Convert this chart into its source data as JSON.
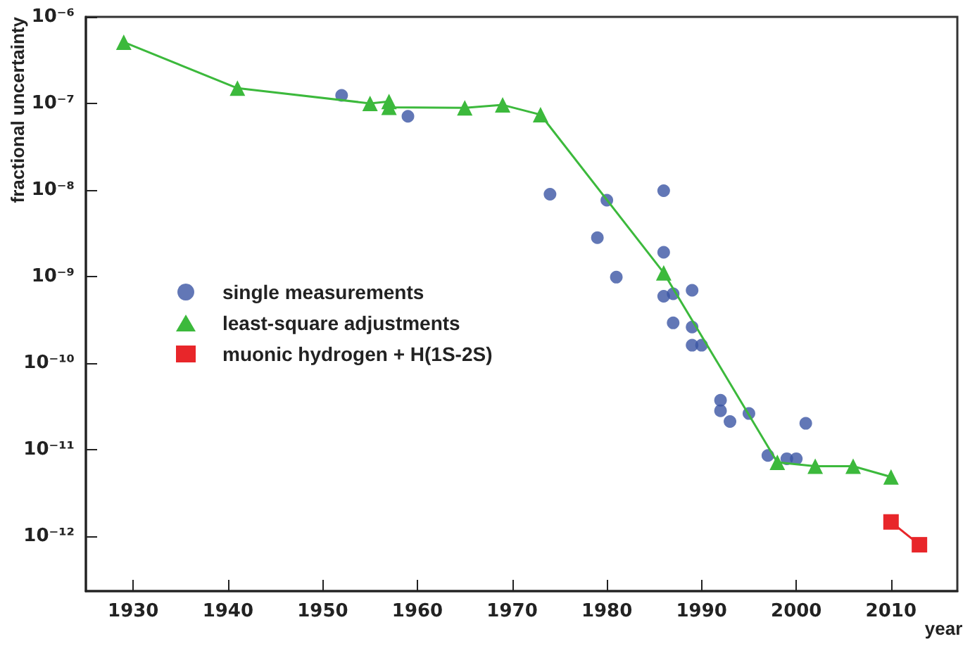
{
  "chart_data": {
    "type": "scatter",
    "xlabel": "year",
    "ylabel": "fractional uncertainty",
    "log": "y",
    "grid": false,
    "legend": "left",
    "xlim": [
      1925,
      2017
    ],
    "xticks": [
      1930,
      1940,
      1950,
      1960,
      1970,
      1980,
      1990,
      2000,
      2010
    ],
    "ylim": [
      2.3e-13,
      1e-06
    ],
    "yticks": [
      {
        "value": 1e-12,
        "label": "10⁻¹²"
      },
      {
        "value": 1e-11,
        "label": "10⁻¹¹"
      },
      {
        "value": 1e-10,
        "label": "10⁻¹⁰"
      },
      {
        "value": 1e-09,
        "label": "10⁻⁹"
      },
      {
        "value": 1e-08,
        "label": "10⁻⁸"
      },
      {
        "value": 1e-07,
        "label": "10⁻⁷"
      },
      {
        "value": 1e-06,
        "label": "10⁻⁶"
      }
    ],
    "series": [
      {
        "name": "single measurements",
        "type": "scatter",
        "marker": "circle",
        "color": "#3b55a4",
        "x": [
          1952,
          1959,
          1974,
          1979,
          1980,
          1981,
          1986,
          1986,
          1986,
          1987,
          1987,
          1989,
          1989,
          1989,
          1990,
          1992,
          1992,
          1993,
          1995,
          1997,
          1999,
          2000,
          2001
        ],
        "values": [
          1.24e-07,
          7.1e-08,
          8.9e-09,
          2.8e-09,
          7.6e-09,
          9.8e-10,
          9.8e-09,
          1.9e-09,
          5.9e-10,
          6.3e-10,
          2.9e-10,
          6.9e-10,
          2.6e-10,
          1.6e-10,
          1.6e-10,
          3.7e-11,
          2.8e-11,
          2.1e-11,
          2.6e-11,
          8.5e-12,
          7.8e-12,
          7.8e-12,
          2e-11
        ]
      },
      {
        "name": "least-square adjustments",
        "type": "line",
        "marker": "triangle",
        "color": "#3cb93c",
        "x": [
          1929,
          1941,
          1955,
          1957,
          1957,
          1965,
          1969,
          1973,
          1986,
          1998,
          2002,
          2006,
          2010
        ],
        "values": [
          5.1e-07,
          1.5e-07,
          1e-07,
          1.05e-07,
          9e-08,
          8.9e-08,
          9.6e-08,
          7.4e-08,
          1.1e-09,
          7.1e-12,
          6.4e-12,
          6.4e-12,
          4.8e-12
        ]
      },
      {
        "name": "muonic hydrogen + H(1S-2S)",
        "type": "line",
        "marker": "square",
        "color": "#e8262a",
        "x": [
          2010,
          2013
        ],
        "values": [
          1.45e-12,
          7.9e-13
        ]
      }
    ]
  }
}
